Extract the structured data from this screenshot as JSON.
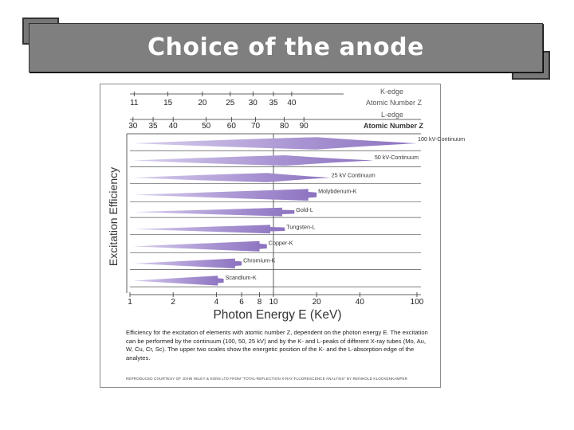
{
  "slide": {
    "title": "Choice of the anode"
  },
  "figure": {
    "caption": "Efficiency for the excitation of elements with atomic number Z, dependent on the photon energy E. The excitation can be performed by the continuum (100, 50, 25 kV) and by the K- and L-peaks of different X-ray tubes (Mo, Au, W, Cu, Cr, Sc). The upper two scales show the energetic position of the K- and the L-absorption edge of the analytes.",
    "credit": "REPRODUCED COURTESY OF JOHN WILEY & SONS LTD FROM \"TOTAL-REFLECTION X-RAY FLUORESCENCE ANALYSIS\" BY REINHOLD KLOCKENKAMPER"
  },
  "chart_data": {
    "type": "area",
    "xlabel": "Photon Energy E (KeV)",
    "ylabel": "Excitation Efficiency",
    "x_scale": "log",
    "xlim": [
      1,
      100
    ],
    "x_ticks": [
      "1",
      "2",
      "4",
      "6",
      "8",
      "10",
      "20",
      "40",
      "100"
    ],
    "x_tick_values": [
      1,
      2,
      4,
      6,
      8,
      10,
      20,
      40,
      100
    ],
    "k_edge_scale": {
      "label": "K-edge",
      "sublabel": "Atomic Number Z",
      "ticks": [
        "11",
        "15",
        "20",
        "25",
        "30",
        "35",
        "40"
      ],
      "energies_keV": [
        1.07,
        1.84,
        3.2,
        5.0,
        7.2,
        10.0,
        13.4
      ]
    },
    "l_edge_scale": {
      "label": "L-edge",
      "sublabel": "Atomic Number Z",
      "ticks": [
        "30",
        "35",
        "40",
        "50",
        "60",
        "70",
        "80",
        "90"
      ],
      "energies_keV": [
        1.05,
        1.45,
        2.0,
        3.4,
        5.1,
        7.5,
        11.9,
        16.3
      ]
    },
    "reference_line_keV": 10,
    "series": [
      {
        "name": "100 kV-Continuum",
        "start_keV": 1.05,
        "peak_keV": 20,
        "end_keV": 100,
        "peak_width": 1.0
      },
      {
        "name": "50 kV-Continuum",
        "start_keV": 1.05,
        "peak_keV": 12,
        "end_keV": 50,
        "peak_width": 0.85
      },
      {
        "name": "25 kV Continuum",
        "start_keV": 1.05,
        "peak_keV": 9,
        "end_keV": 25,
        "peak_width": 0.75
      },
      {
        "name": "Molybdenum-K",
        "start_keV": 1.05,
        "peak_keV": 17.5,
        "end_keV": 20,
        "peak_width": 0.95
      },
      {
        "name": "Gold-L",
        "start_keV": 1.05,
        "peak_keV": 11.5,
        "end_keV": 14.0,
        "peak_width": 0.7
      },
      {
        "name": "Tungsten-L",
        "start_keV": 1.05,
        "peak_keV": 9.5,
        "end_keV": 12.0,
        "peak_width": 0.7
      },
      {
        "name": "Copper-K",
        "start_keV": 1.05,
        "peak_keV": 8.0,
        "end_keV": 9.0,
        "peak_width": 0.85
      },
      {
        "name": "Chromium-K",
        "start_keV": 1.05,
        "peak_keV": 5.4,
        "end_keV": 6.0,
        "peak_width": 0.8
      },
      {
        "name": "Scandium-K",
        "start_keV": 1.05,
        "peak_keV": 4.1,
        "end_keV": 4.5,
        "peak_width": 0.8
      }
    ],
    "colors": {
      "band": "#8c72c0",
      "band_light": "#d9d0ee",
      "grid": "#555555"
    }
  }
}
